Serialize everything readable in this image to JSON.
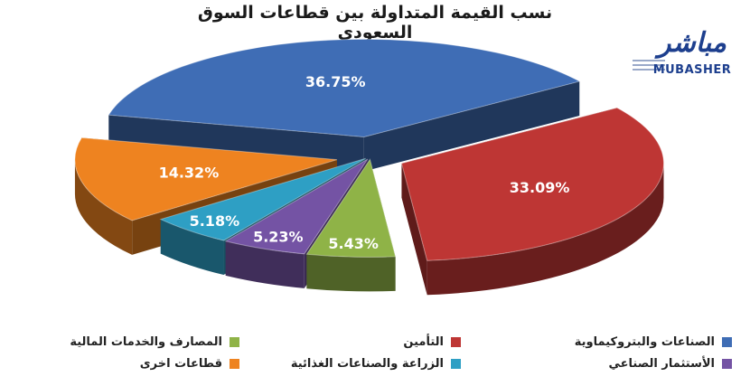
{
  "title": "نسب القيمة المتداولة بين قطاعات السوق السعودي",
  "logo": {
    "arabic": "مباشر",
    "latin": "MUBASHER"
  },
  "chart_data": {
    "type": "pie",
    "title": "نسب القيمة المتداولة بين قطاعات السوق السعودي",
    "unit": "%",
    "legend_position": "bottom",
    "slices": [
      {
        "name": "الصناعات والبتروكيماوية",
        "value": 36.75,
        "label": "36.75%",
        "color": "#3f6db5"
      },
      {
        "name": "التأمين",
        "value": 33.09,
        "label": "33.09%",
        "color": "#be3634"
      },
      {
        "name": "المصارف والخدمات المالية",
        "value": 5.43,
        "label": "5.43%",
        "color": "#8fb347"
      },
      {
        "name": "الأستثمار الصناعي",
        "value": 5.23,
        "label": "5.23%",
        "color": "#7453a4"
      },
      {
        "name": "الزراعة والصناعات الغذائية",
        "value": 5.18,
        "label": "5.18%",
        "color": "#2e9fc4"
      },
      {
        "name": "قطاعات اخرى",
        "value": 14.32,
        "label": "14.32%",
        "color": "#ee8320"
      }
    ]
  }
}
